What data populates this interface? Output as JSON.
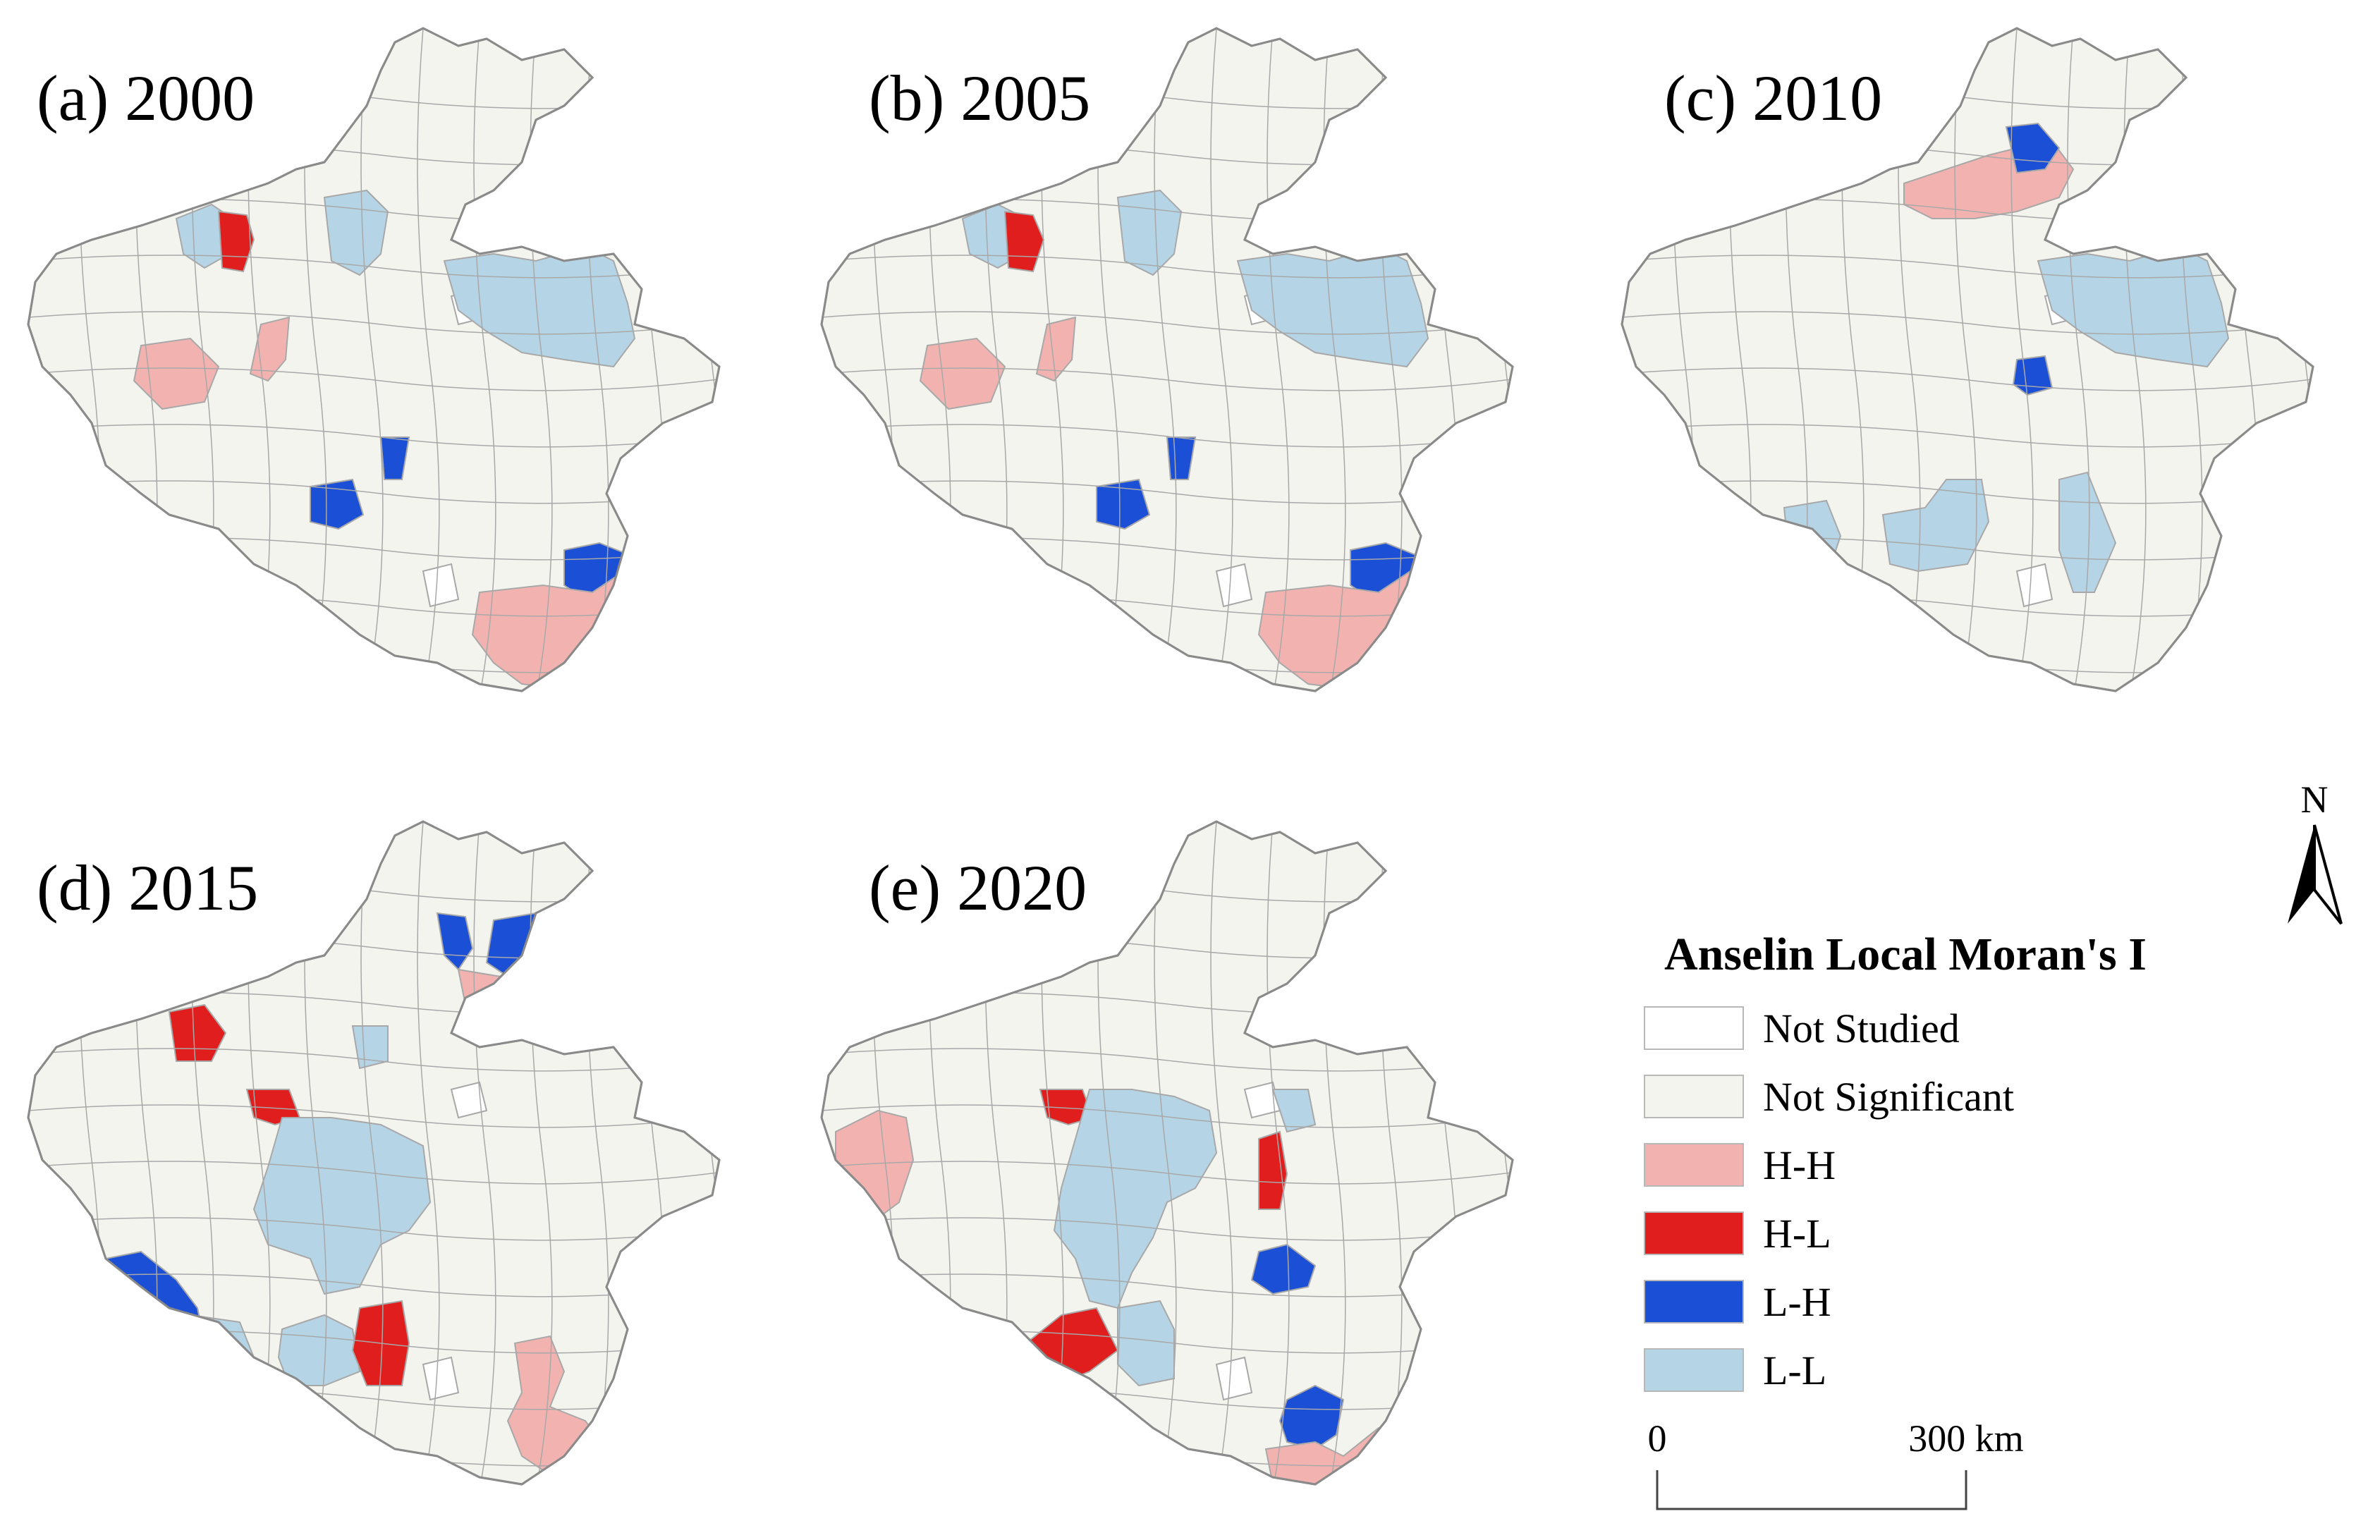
{
  "panels": [
    {
      "title": "(a) 2000"
    },
    {
      "title": "(b) 2005"
    },
    {
      "title": "(c) 2010"
    },
    {
      "title": "(d) 2015"
    },
    {
      "title": "(e) 2020"
    }
  ],
  "legend": {
    "heading": "Anselin Local Moran's I",
    "items": [
      {
        "label": "Not Studied",
        "color": "#ffffff"
      },
      {
        "label": "Not Significant",
        "color": "#f4f4ef"
      },
      {
        "label": "H-H",
        "color": "#f2b3b0"
      },
      {
        "label": "H-L",
        "color": "#e01e1e"
      },
      {
        "label": "L-H",
        "color": "#1a4fd6"
      },
      {
        "label": "L-L",
        "color": "#b5d5e6"
      }
    ]
  },
  "scale_bar": {
    "start_label": "0",
    "end_label": "300 km"
  },
  "north_arrow": {
    "label": "N"
  },
  "colors": {
    "outline": "#8a8a8a",
    "inner_boundary": "#a8a8a8",
    "north_arrow": "#000000"
  }
}
